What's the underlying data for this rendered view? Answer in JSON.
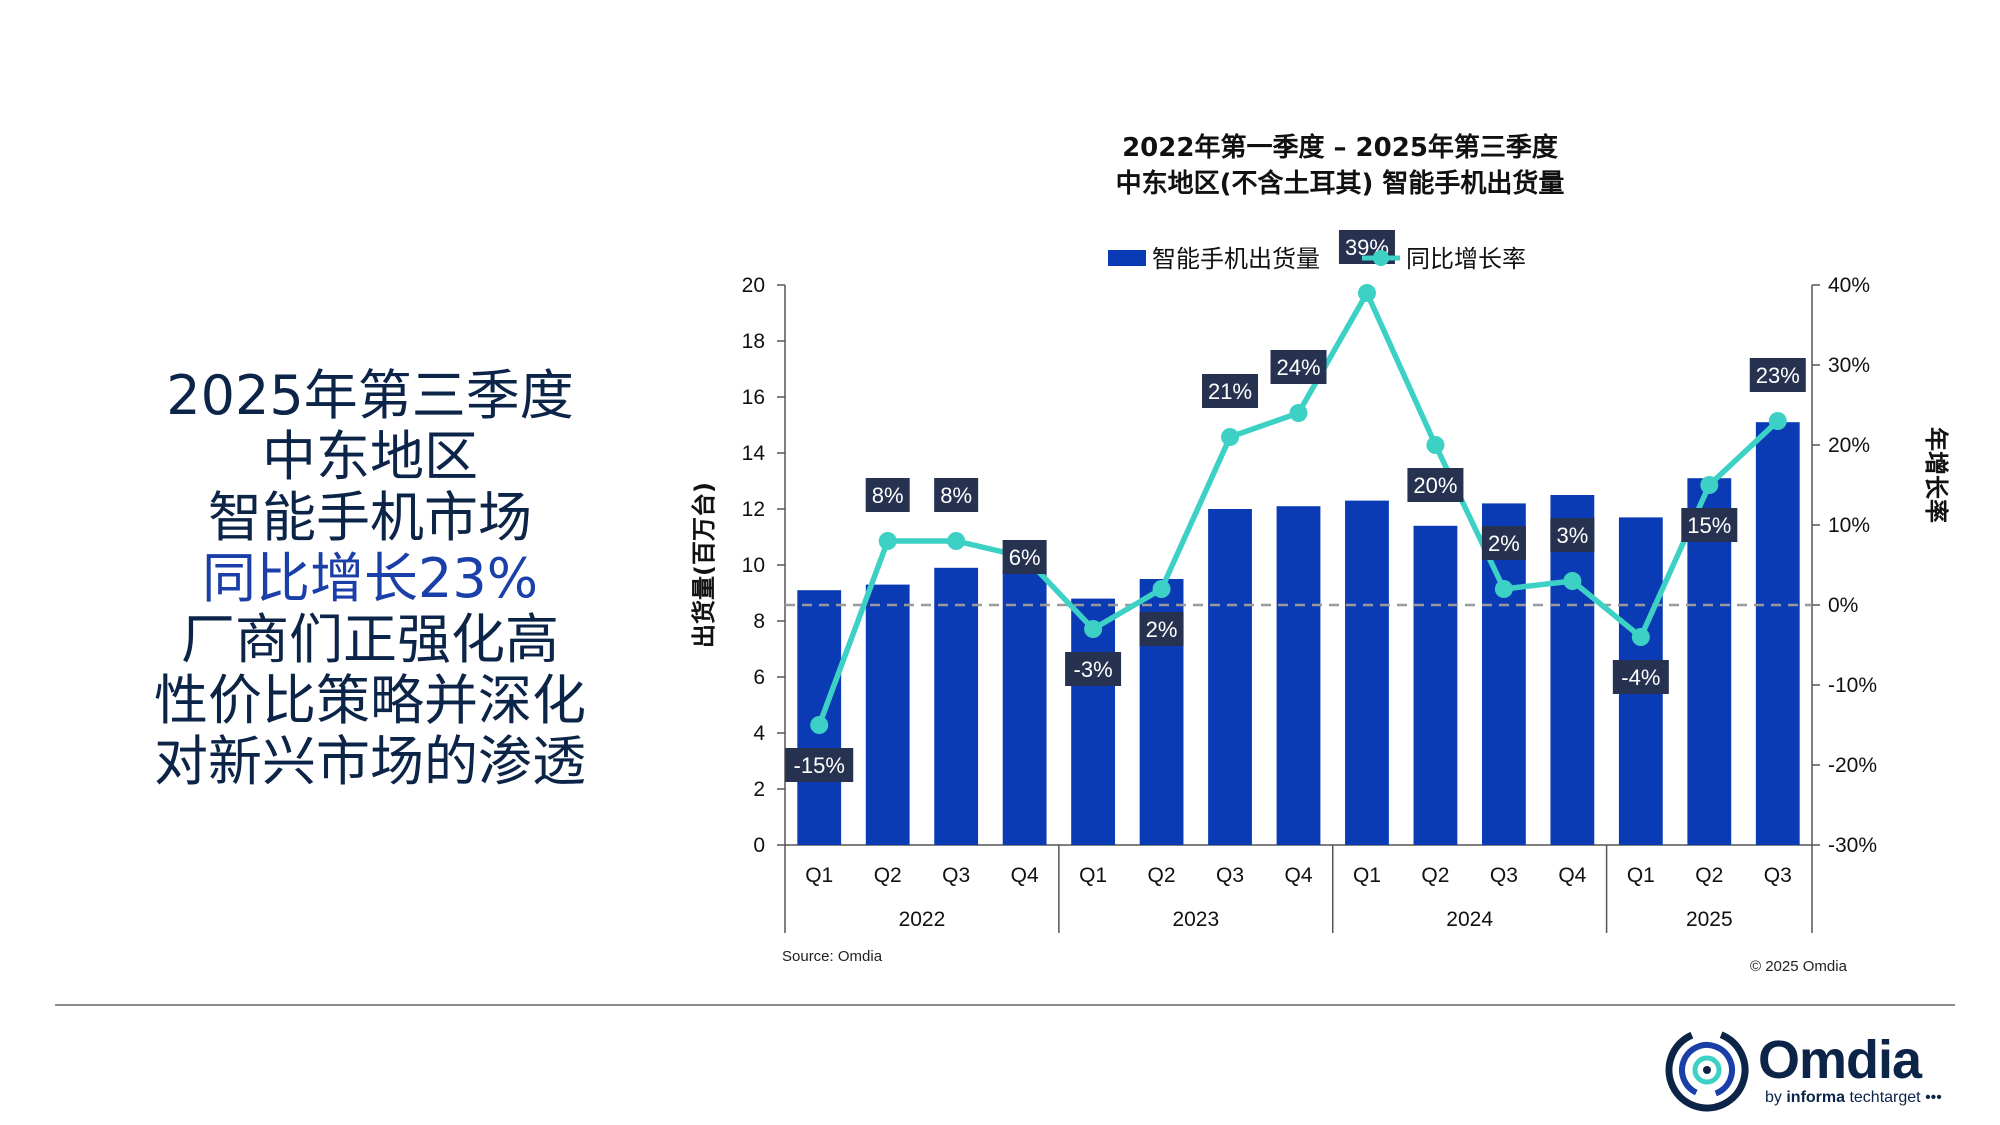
{
  "headline": {
    "lines": [
      "2025年第三季度",
      "中东地区",
      "智能手机市场"
    ],
    "accent_line": "同比增长23%",
    "tail_lines": [
      "厂商们正强化高",
      "性价比策略并深化",
      "对新兴市场的渗透"
    ]
  },
  "colors": {
    "bar": "#0a3bb5",
    "line": "#3dd1c6",
    "label_bg": "#26324f",
    "label_text": "#ffffff",
    "headline": "#0b2447",
    "headline_accent": "#1a3fa8"
  },
  "chart_data": {
    "type": "bar",
    "title": [
      "2022年第一季度 – 2025年第三季度",
      "中东地区(不含土耳其) 智能手机出货量"
    ],
    "ylabel": "出货量(百万台)",
    "y2label": "年增长率",
    "ylim": [
      0,
      20
    ],
    "y2lim": [
      -30,
      40
    ],
    "yticks": [
      "0",
      "2",
      "4",
      "6",
      "8",
      "10",
      "12",
      "14",
      "16",
      "18",
      "20"
    ],
    "y2ticks": [
      "-30%",
      "-20%",
      "-10%",
      "0%",
      "10%",
      "20%",
      "30%",
      "40%"
    ],
    "legend_position": "top",
    "categories": [
      "Q1",
      "Q2",
      "Q3",
      "Q4",
      "Q1",
      "Q2",
      "Q3",
      "Q4",
      "Q1",
      "Q2",
      "Q3",
      "Q4",
      "Q1",
      "Q2",
      "Q3"
    ],
    "years": [
      {
        "label": "2022",
        "quarters": 4
      },
      {
        "label": "2023",
        "quarters": 4
      },
      {
        "label": "2024",
        "quarters": 4
      },
      {
        "label": "2025",
        "quarters": 3
      }
    ],
    "series": [
      {
        "name": "智能手机出货量",
        "type": "bar",
        "axis": "left",
        "values": [
          9.1,
          9.3,
          9.9,
          9.8,
          8.8,
          9.5,
          12.0,
          12.1,
          12.3,
          11.4,
          12.2,
          12.5,
          11.7,
          13.1,
          15.1
        ]
      },
      {
        "name": "同比增长率",
        "type": "line",
        "axis": "right",
        "values": [
          -15,
          8,
          8,
          6,
          -3,
          2,
          21,
          24,
          39,
          20,
          2,
          3,
          -4,
          15,
          23
        ],
        "labels": [
          "-15%",
          "8%",
          "8%",
          "6%",
          "-3%",
          "2%",
          "21%",
          "24%",
          "39%",
          "20%",
          "2%",
          "3%",
          "-4%",
          "15%",
          "23%"
        ]
      }
    ],
    "label_positions": [
      "below",
      "above",
      "above",
      "on",
      "below",
      "below",
      "above",
      "above",
      "above",
      "below",
      "above",
      "above",
      "below",
      "below",
      "above"
    ]
  },
  "footer": {
    "source": "Source: Omdia",
    "copyright": "© 2025 Omdia",
    "logo_word": "Omdia",
    "logo_tag_prefix": "by ",
    "logo_tag_bold": "informa",
    "logo_tag_suffix": " techtarget"
  }
}
